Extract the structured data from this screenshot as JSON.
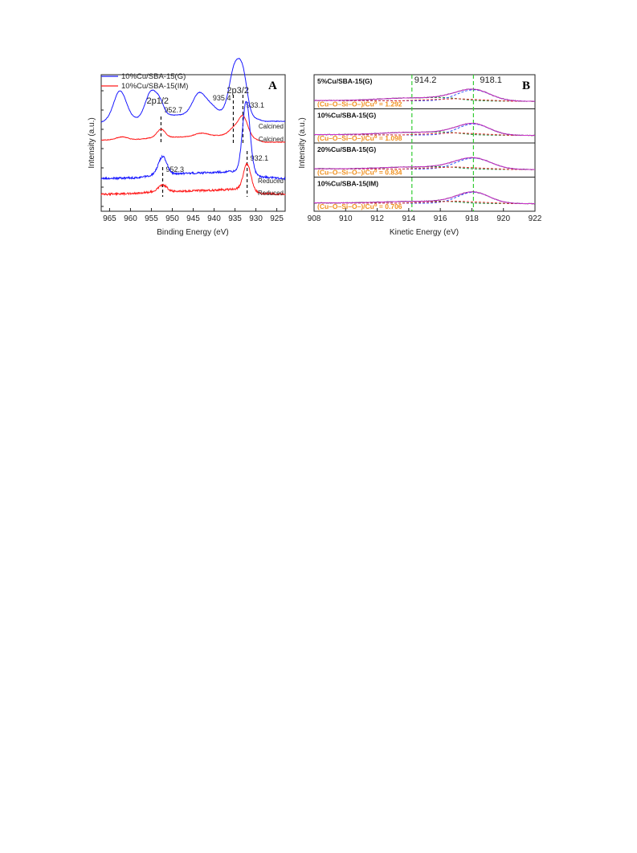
{
  "figure": {
    "panel_a_letter": "A",
    "panel_b_letter": "B"
  },
  "chart_data": [
    {
      "type": "line",
      "panel": "A",
      "xlabel": "Binding Energy (eV)",
      "ylabel": "Intensity (a.u.)",
      "xlim": [
        967,
        923
      ],
      "x_reversed": true,
      "xticks": [
        965,
        960,
        955,
        950,
        945,
        940,
        935,
        930,
        925
      ],
      "legend": {
        "position": "top-left",
        "entries": [
          {
            "name": "10%Cu/SBA-15(G)",
            "color": "#1a1aff"
          },
          {
            "name": "10%Cu/SBA-15(IM)",
            "color": "#ff1a1a"
          }
        ]
      },
      "peak_labels": [
        {
          "text": "2p1/2",
          "x": 953.5
        },
        {
          "text": "2p3/2",
          "x": 934.3
        }
      ],
      "dashed_lines": [
        {
          "group": "calcined",
          "x": 952.7,
          "label": "952.7"
        },
        {
          "group": "calcined",
          "x": 935.4,
          "label": "935.4"
        },
        {
          "group": "calcined",
          "x": 933.1,
          "label": "933.1"
        },
        {
          "group": "reduced",
          "x": 952.3,
          "label": "952.3"
        },
        {
          "group": "reduced",
          "x": 932.1,
          "label": "932.1"
        }
      ],
      "series": [
        {
          "sample": "10%Cu/SBA-15(G)",
          "state": "Calcined",
          "color": "#1a1aff",
          "label": "Calcined",
          "baseline": [
            [
              967,
              0.69
            ],
            [
              963,
              0.72
            ],
            [
              958,
              0.72
            ],
            [
              952,
              0.76
            ],
            [
              946,
              0.76
            ],
            [
              940,
              0.77
            ],
            [
              937,
              0.79
            ],
            [
              934,
              0.8
            ],
            [
              931,
              0.74
            ],
            [
              928,
              0.7
            ],
            [
              923,
              0.7
            ]
          ],
          "peaks": [
            {
              "center": 962.5,
              "height": 0.27,
              "width": 1.5
            },
            {
              "center": 955.0,
              "height": 0.25,
              "width": 1.4
            },
            {
              "center": 952.9,
              "height": 0.09,
              "width": 0.9
            },
            {
              "center": 943.5,
              "height": 0.21,
              "width": 1.6
            },
            {
              "center": 935.0,
              "height": 0.43,
              "width": 1.3
            },
            {
              "center": 933.0,
              "height": 0.3,
              "width": 1.0
            },
            {
              "center": 940.5,
              "height": 0.06,
              "width": 1.2
            }
          ]
        },
        {
          "sample": "10%Cu/SBA-15(IM)",
          "state": "Calcined",
          "color": "#ff1a1a",
          "label": "Calcined",
          "baseline": [
            [
              967,
              0.52
            ],
            [
              960,
              0.52
            ],
            [
              955,
              0.54
            ],
            [
              948,
              0.55
            ],
            [
              940,
              0.56
            ],
            [
              935,
              0.58
            ],
            [
              931,
              0.54
            ],
            [
              928,
              0.5
            ],
            [
              923,
              0.5
            ]
          ],
          "peaks": [
            {
              "center": 962.0,
              "height": 0.03,
              "width": 1.5
            },
            {
              "center": 952.7,
              "height": 0.08,
              "width": 1.0
            },
            {
              "center": 943.0,
              "height": 0.03,
              "width": 1.6
            },
            {
              "center": 933.1,
              "height": 0.19,
              "width": 1.1
            },
            {
              "center": 935.5,
              "height": 0.05,
              "width": 1.0
            }
          ]
        },
        {
          "sample": "10%Cu/SBA-15(G)",
          "state": "Reduced",
          "color": "#1a1aff",
          "label": "Reduced",
          "baseline": [
            [
              967,
              0.15
            ],
            [
              958,
              0.16
            ],
            [
              954,
              0.19
            ],
            [
              948,
              0.2
            ],
            [
              940,
              0.21
            ],
            [
              936,
              0.22
            ],
            [
              932,
              0.22
            ],
            [
              929,
              0.17
            ],
            [
              923,
              0.15
            ]
          ],
          "peaks": [
            {
              "center": 952.3,
              "height": 0.17,
              "width": 1.0
            },
            {
              "center": 932.3,
              "height": 0.67,
              "width": 0.9
            }
          ]
        },
        {
          "sample": "10%Cu/SBA-15(IM)",
          "state": "Reduced",
          "color": "#ff1a1a",
          "label": "Reduced",
          "baseline": [
            [
              967,
              0.0
            ],
            [
              958,
              0.01
            ],
            [
              954,
              0.03
            ],
            [
              948,
              0.03
            ],
            [
              940,
              0.04
            ],
            [
              935,
              0.05
            ],
            [
              932,
              0.05
            ],
            [
              929,
              0.01
            ],
            [
              923,
              0.0
            ]
          ],
          "peaks": [
            {
              "center": 952.3,
              "height": 0.06,
              "width": 1.0
            },
            {
              "center": 932.1,
              "height": 0.24,
              "width": 0.9
            }
          ]
        }
      ]
    },
    {
      "type": "line",
      "panel": "B",
      "xlabel": "Kinetic Energy (eV)",
      "ylabel": "Intensity (a.u.)",
      "xlim": [
        908,
        922
      ],
      "xticks": [
        908,
        910,
        912,
        914,
        916,
        918,
        920,
        922
      ],
      "reference_lines": [
        {
          "x": 914.2,
          "label": "914.2",
          "color": "#33cc33"
        },
        {
          "x": 918.1,
          "label": "918.1",
          "color": "#33cc33"
        }
      ],
      "components": [
        {
          "name": "Cu0",
          "center": 918.1,
          "color": "#3355ff"
        },
        {
          "name": "Cu-O-Si-O-",
          "center": 914.2,
          "color": "#1a8a3a"
        },
        {
          "name": "background",
          "color": "#dd3333"
        },
        {
          "name": "envelope",
          "color": "#cc33cc"
        },
        {
          "name": "data",
          "color": "#111111"
        }
      ],
      "panels": [
        {
          "sample": "5%Cu/SBA-15(G)",
          "ratio_text": "(Cu–O–Si–O–)/Cu⁰ = 1.292",
          "cu0_height": 1.0,
          "cu0_width": 1.05,
          "cuosi_height": 0.3,
          "cuosi_width": 2.0,
          "bg_left": 0.05,
          "bg_right": 0.0
        },
        {
          "sample": "10%Cu/SBA-15(G)",
          "ratio_text": "(Cu–O–Si–O–)/Cu⁰ = 1.098",
          "cu0_height": 1.0,
          "cu0_width": 1.0,
          "cuosi_height": 0.27,
          "cuosi_width": 2.0,
          "bg_left": 0.05,
          "bg_right": 0.0
        },
        {
          "sample": "20%Cu/SBA-15(G)",
          "ratio_text": "(Cu–O–Si–O–)/Cu⁰ = 0.834",
          "cu0_height": 1.0,
          "cu0_width": 1.1,
          "cuosi_height": 0.22,
          "cuosi_width": 1.9,
          "bg_left": 0.05,
          "bg_right": 0.0
        },
        {
          "sample": "10%Cu/SBA-15(IM)",
          "ratio_text": "(Cu–O–Si–O–)/Cu⁰ = 0.706",
          "cu0_height": 1.0,
          "cu0_width": 1.0,
          "cuosi_height": 0.19,
          "cuosi_width": 1.9,
          "bg_left": 0.05,
          "bg_right": 0.0
        }
      ]
    }
  ]
}
